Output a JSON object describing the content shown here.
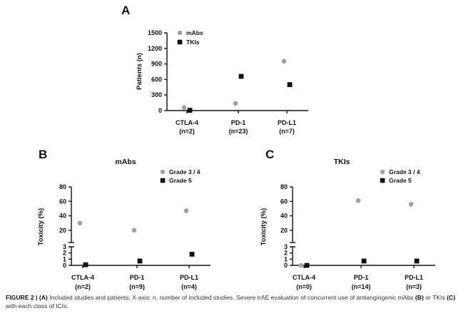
{
  "chart_data": [
    {
      "type": "scatter",
      "panel": "A",
      "title": "",
      "ylabel": "Patients (n)",
      "xlabel": "",
      "ylim": [
        0,
        1500
      ],
      "yticks": [
        "0",
        "300",
        "600",
        "900",
        "1200",
        "1500"
      ],
      "categories": [
        {
          "name": "CTLA-4",
          "n": "(n=2)"
        },
        {
          "name": "PD-1",
          "n": "(n=23)"
        },
        {
          "name": "PD-L1",
          "n": "(n=7)"
        }
      ],
      "series": [
        {
          "name": "mAbs",
          "marker": "circle",
          "color": "#a0a0a0",
          "values": [
            60,
            140,
            950
          ]
        },
        {
          "name": "TKIs",
          "marker": "square",
          "color": "#111111",
          "values": [
            5,
            660,
            500
          ]
        }
      ],
      "legend": "top-right",
      "grid": false
    },
    {
      "type": "scatter",
      "panel": "B",
      "title": "mAbs",
      "ylabel": "Toxicity (%)",
      "xlabel": "",
      "ylim": [
        0,
        80
      ],
      "axis_break": true,
      "yticks_lower": [
        "0",
        "1",
        "2",
        "3"
      ],
      "yticks_upper": [
        "20",
        "40",
        "60",
        "80"
      ],
      "categories": [
        {
          "name": "CTLA-4",
          "n": "(n=2)"
        },
        {
          "name": "PD-1",
          "n": "(n=9)"
        },
        {
          "name": "PD-L1",
          "n": "(n=4)"
        }
      ],
      "series": [
        {
          "name": "Grade 3 / 4",
          "marker": "circle",
          "color": "#a0a0a0",
          "values": [
            30,
            20,
            47
          ]
        },
        {
          "name": "Grade 5",
          "marker": "square",
          "color": "#111111",
          "values": [
            0.1,
            0.7,
            1.8
          ]
        }
      ],
      "legend": "top-right",
      "grid": false
    },
    {
      "type": "scatter",
      "panel": "C",
      "title": "TKIs",
      "ylabel": "Toxicity (%)",
      "xlabel": "",
      "ylim": [
        0,
        80
      ],
      "axis_break": true,
      "yticks_lower": [
        "0",
        "1",
        "2",
        "3"
      ],
      "yticks_upper": [
        "20",
        "40",
        "60",
        "80"
      ],
      "categories": [
        {
          "name": "CTLA-4",
          "n": "(n=0)"
        },
        {
          "name": "PD-1",
          "n": "(n=14)"
        },
        {
          "name": "PD-L1",
          "n": "(n=3)"
        }
      ],
      "series": [
        {
          "name": "Grade 3 / 4",
          "marker": "circle",
          "color": "#a0a0a0",
          "values": [
            0,
            61,
            56
          ]
        },
        {
          "name": "Grade 5",
          "marker": "square",
          "color": "#111111",
          "values": [
            0,
            0.7,
            0.7
          ]
        }
      ],
      "legend": "top-right",
      "grid": false
    }
  ],
  "caption": {
    "label": "FIGURE 2 |",
    "parts": [
      {
        "b": true,
        "t": "(A)"
      },
      {
        "b": false,
        "t": " Included studies and patients; X-axis: n, number of included studies. Severe trAE evaluation of concurrent use of antiangiogenic mAbs "
      },
      {
        "b": true,
        "t": "(B)"
      },
      {
        "b": false,
        "t": " or TKIs "
      },
      {
        "b": true,
        "t": "(C)"
      },
      {
        "b": false,
        "t": " with each class of ICIs."
      }
    ]
  }
}
